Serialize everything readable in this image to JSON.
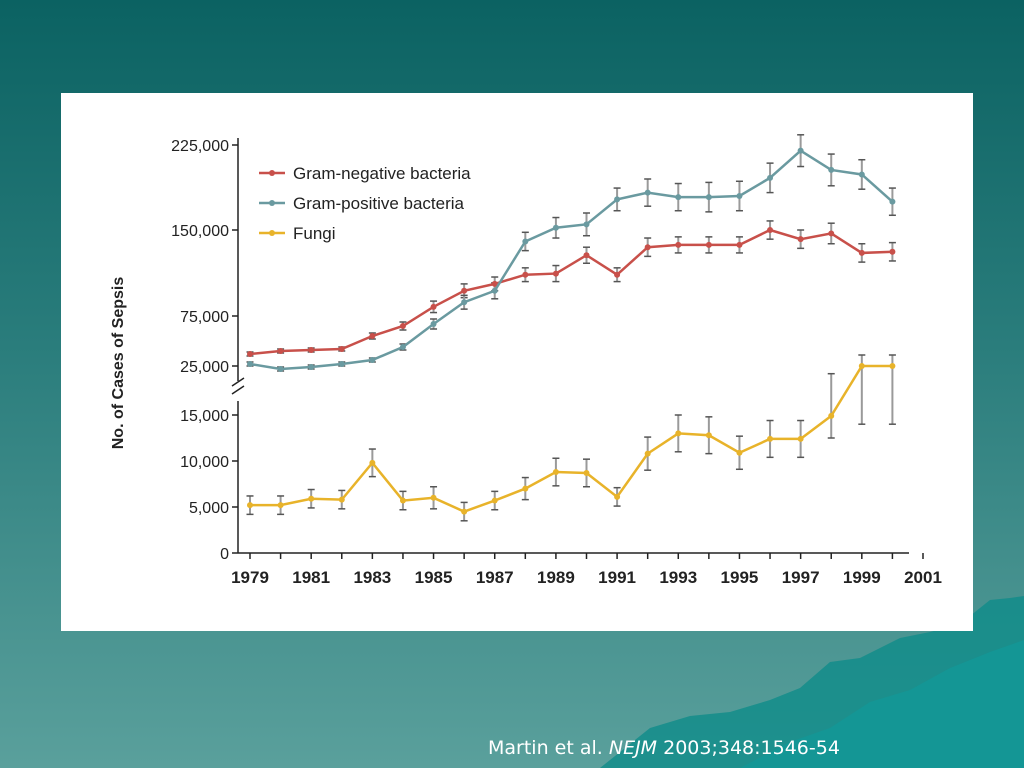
{
  "slide": {
    "citation_authors": "Martin et al.",
    "citation_journal": "NEJM",
    "citation_ref": "2003;348:1546-54"
  },
  "colors": {
    "gram_negative": "#c8504a",
    "gram_positive": "#6a9aa0",
    "fungi": "#e8b32a",
    "error_bar": "#9a9a9a",
    "axis": "#222222"
  },
  "chart_data": {
    "type": "line",
    "ylabel": "No. of Cases of Sepsis",
    "xlabel": "",
    "x_ticks": [
      "1979",
      "1981",
      "1983",
      "1985",
      "1987",
      "1989",
      "1991",
      "1993",
      "1995",
      "1997",
      "1999",
      "2001"
    ],
    "xlim": [
      1979,
      2001
    ],
    "y_axis_broken": true,
    "y_upper_ticks": [
      "25,000",
      "75,000",
      "150,000",
      "225,000"
    ],
    "y_upper_tick_values": [
      25000,
      75000,
      150000,
      225000
    ],
    "y_lower_ticks": [
      "0",
      "5,000",
      "10,000",
      "15,000"
    ],
    "y_lower_tick_values": [
      0,
      5000,
      10000,
      15000
    ],
    "legend_position": "top-left",
    "x": [
      1979,
      1980,
      1981,
      1982,
      1983,
      1984,
      1985,
      1986,
      1987,
      1988,
      1989,
      1990,
      1991,
      1992,
      1993,
      1994,
      1995,
      1996,
      1997,
      1998,
      1999,
      2000
    ],
    "series": [
      {
        "name": "Gram-negative bacteria",
        "segment": "upper",
        "values": [
          37000,
          40000,
          41000,
          42000,
          55000,
          65000,
          83000,
          97000,
          103000,
          111000,
          112000,
          128000,
          111000,
          135000,
          137000,
          137000,
          137000,
          150000,
          142000,
          147000,
          130000,
          131000
        ],
        "errors": [
          2000,
          2000,
          2000,
          2000,
          3000,
          4000,
          5000,
          6000,
          6000,
          6000,
          7000,
          7000,
          6000,
          8000,
          7000,
          7000,
          7000,
          8000,
          8000,
          9000,
          8000,
          8000
        ]
      },
      {
        "name": "Gram-positive bacteria",
        "segment": "upper",
        "values": [
          27000,
          22000,
          24000,
          27000,
          31000,
          44000,
          67000,
          87000,
          97000,
          140000,
          152000,
          155000,
          177000,
          183000,
          179000,
          179000,
          180000,
          196000,
          220000,
          203000,
          199000,
          175000
        ],
        "errors": [
          2000,
          2000,
          2000,
          2000,
          2000,
          3000,
          5000,
          6000,
          7000,
          8000,
          9000,
          10000,
          10000,
          12000,
          12000,
          13000,
          13000,
          13000,
          14000,
          14000,
          13000,
          12000
        ]
      },
      {
        "name": "Fungi",
        "segment": "lower",
        "values": [
          5200,
          5200,
          5900,
          5800,
          9800,
          5700,
          6000,
          4500,
          5700,
          7000,
          8800,
          8700,
          6100,
          10800,
          13000,
          12800,
          10900,
          12400,
          12400,
          14900,
          25000,
          25000
        ],
        "errors": [
          1000,
          1000,
          1000,
          1000,
          1500,
          1000,
          1200,
          1000,
          1000,
          1200,
          1500,
          1500,
          1000,
          1800,
          2000,
          2000,
          1800,
          2000,
          2000,
          2400,
          11000,
          11000
        ]
      }
    ]
  }
}
